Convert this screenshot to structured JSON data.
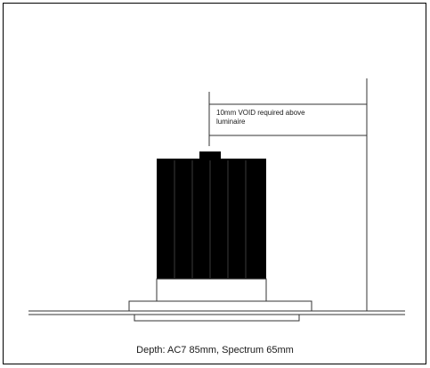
{
  "diagram": {
    "annotation": {
      "line1": "10mm VOID required above",
      "line2": "luminaire"
    },
    "caption": "Depth: AC7 85mm, Spectrum 65mm",
    "colors": {
      "stroke": "#1a1a1a",
      "body_fill": "#000000",
      "background": "#ffffff"
    }
  }
}
